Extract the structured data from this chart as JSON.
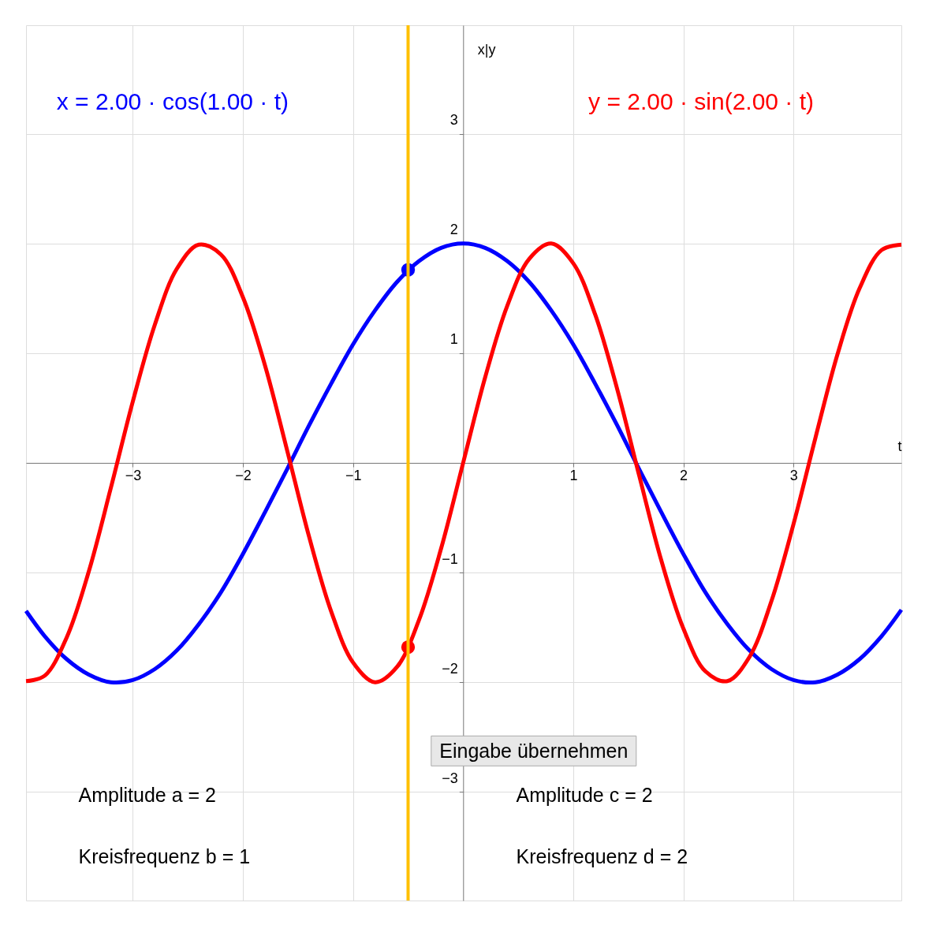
{
  "chart_data": {
    "type": "line",
    "xlabel": "t",
    "ylabel": "x|y",
    "xlim": [
      -3.97,
      3.98
    ],
    "ylim": [
      -3.99,
      3.99
    ],
    "xticks": [
      -3,
      -2,
      -1,
      1,
      2,
      3
    ],
    "yticks": [
      -3,
      -2,
      -1,
      1,
      2,
      3
    ],
    "grid": true,
    "line_style": "solid",
    "marker": "none",
    "series": [
      {
        "name": "x = 2.00 · cos(1.00 · t)",
        "color": "#0000ff",
        "x": [
          -3.97,
          -3.8,
          -3.6,
          -3.4,
          -3.2,
          -3.0,
          -2.8,
          -2.6,
          -2.4,
          -2.2,
          -2.0,
          -1.8,
          -1.6,
          -1.4,
          -1.2,
          -1.0,
          -0.8,
          -0.6,
          -0.4,
          -0.2,
          0,
          0.2,
          0.4,
          0.6,
          0.8,
          1.0,
          1.2,
          1.4,
          1.6,
          1.8,
          2.0,
          2.2,
          2.4,
          2.6,
          2.8,
          3.0,
          3.2,
          3.4,
          3.6,
          3.8,
          3.98
        ],
        "values": [
          -1.35,
          -1.58,
          -1.79,
          -1.93,
          -2.0,
          -1.98,
          -1.88,
          -1.71,
          -1.47,
          -1.18,
          -0.83,
          -0.45,
          -0.06,
          0.34,
          0.72,
          1.08,
          1.39,
          1.65,
          1.84,
          1.96,
          2.0,
          1.96,
          1.84,
          1.65,
          1.39,
          1.08,
          0.72,
          0.34,
          -0.06,
          -0.45,
          -0.83,
          -1.18,
          -1.47,
          -1.71,
          -1.88,
          -1.98,
          -2.0,
          -1.93,
          -1.79,
          -1.58,
          -1.34
        ]
      },
      {
        "name": "y = 2.00 · sin(2.00 · t)",
        "color": "#ff0000",
        "x": [
          -3.97,
          -3.8,
          -3.6,
          -3.4,
          -3.2,
          -3.0,
          -2.8,
          -2.6,
          -2.4,
          -2.2,
          -2.0,
          -1.8,
          -1.6,
          -1.4,
          -1.2,
          -1.0,
          -0.8,
          -0.6,
          -0.4,
          -0.2,
          0,
          0.2,
          0.4,
          0.6,
          0.8,
          1.0,
          1.2,
          1.4,
          1.6,
          1.8,
          2.0,
          2.2,
          2.4,
          2.6,
          2.8,
          3.0,
          3.2,
          3.4,
          3.6,
          3.8,
          3.98
        ],
        "values": [
          -1.99,
          -1.94,
          -1.59,
          -0.99,
          -0.23,
          0.56,
          1.26,
          1.77,
          1.99,
          1.9,
          1.51,
          0.89,
          0.12,
          -0.67,
          -1.35,
          -1.82,
          -2.0,
          -1.86,
          -1.43,
          -0.78,
          0,
          0.78,
          1.43,
          1.86,
          2.0,
          1.82,
          1.35,
          0.67,
          -0.12,
          -0.89,
          -1.51,
          -1.9,
          -1.99,
          -1.77,
          -1.26,
          -0.56,
          0.23,
          0.99,
          1.59,
          1.94,
          1.99
        ]
      },
      {
        "type": "scatter",
        "marker": "circle",
        "color": "#0000ff",
        "x": [
          -0.5
        ],
        "values": [
          1.76
        ]
      },
      {
        "type": "scatter",
        "marker": "circle",
        "color": "#ff0000",
        "x": [
          -0.5
        ],
        "values": [
          -1.68
        ]
      }
    ],
    "ref_lines": [
      {
        "axis": "x",
        "value": -0.5,
        "color": "#ffc000",
        "line_style": "solid"
      }
    ],
    "annotations": [
      "Eingabe übernehmen",
      "Amplitude a = 2",
      "Kreisfrequenz b = 1",
      "Amplitude c = 2",
      "Kreisfrequenz d = 2"
    ]
  }
}
